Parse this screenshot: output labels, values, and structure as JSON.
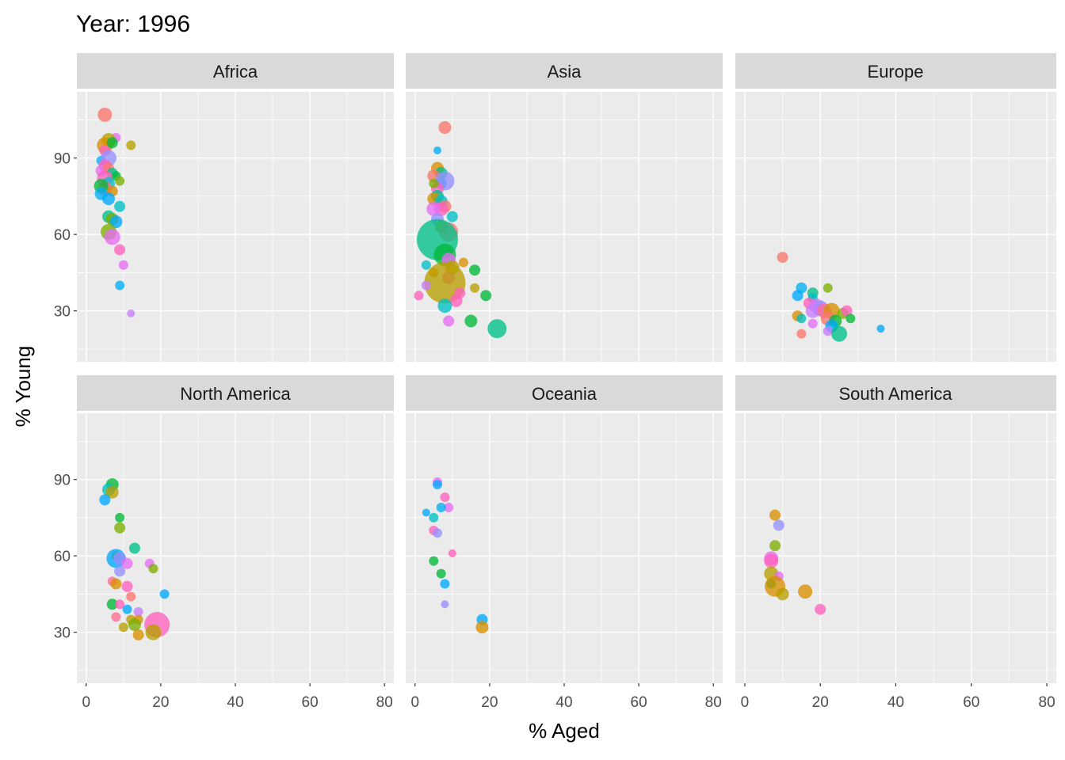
{
  "chart_data": {
    "type": "scatter",
    "title": "Year: 1996",
    "xlabel": "% Aged",
    "ylabel": "% Young",
    "xlim": [
      -2.5,
      82.5
    ],
    "ylim": [
      10,
      116
    ],
    "x_ticks": [
      0,
      20,
      40,
      60,
      80
    ],
    "y_ticks": [
      30,
      60,
      90
    ],
    "grid": true,
    "legend": "none",
    "facets": [
      {
        "name": "Africa",
        "points": [
          [
            5,
            107,
            "#F8766D",
            9
          ],
          [
            8,
            98,
            "#E76BF3",
            6
          ],
          [
            12,
            95,
            "#B79F00",
            6
          ],
          [
            6,
            97,
            "#B79F00",
            9
          ],
          [
            5,
            95,
            "#D89000",
            10
          ],
          [
            5,
            93,
            "#FF62BC",
            7
          ],
          [
            7,
            96,
            "#00BA38",
            7
          ],
          [
            4,
            89,
            "#00B0F6",
            6
          ],
          [
            6,
            90,
            "#9590FF",
            10
          ],
          [
            5,
            87,
            "#FF62BC",
            8
          ],
          [
            4,
            85,
            "#E76BF3",
            7
          ],
          [
            6,
            86,
            "#F8766D",
            7
          ],
          [
            7,
            84,
            "#00C08B",
            7
          ],
          [
            8,
            83,
            "#00BA38",
            6
          ],
          [
            9,
            81,
            "#7CAE00",
            6
          ],
          [
            5,
            82,
            "#FF62BC",
            10
          ],
          [
            6,
            80,
            "#00BFC4",
            8
          ],
          [
            5,
            78,
            "#FF6C91",
            9
          ],
          [
            4,
            79,
            "#00BA38",
            9
          ],
          [
            7,
            77,
            "#D89000",
            7
          ],
          [
            4,
            76,
            "#00B0F6",
            8
          ],
          [
            6,
            74,
            "#00A9FF",
            8
          ],
          [
            9,
            71,
            "#00BFC4",
            7
          ],
          [
            6,
            67,
            "#00C08B",
            8
          ],
          [
            7,
            66,
            "#7CAE00",
            8
          ],
          [
            8,
            65,
            "#00A9FF",
            8
          ],
          [
            6,
            61,
            "#7CAE00",
            10
          ],
          [
            7,
            59,
            "#E76BF3",
            10
          ],
          [
            9,
            54,
            "#FF62BC",
            7
          ],
          [
            10,
            48,
            "#E76BF3",
            6
          ],
          [
            9,
            40,
            "#00B0F6",
            6
          ],
          [
            12,
            29,
            "#C77CFF",
            5
          ]
        ]
      },
      {
        "name": "Asia",
        "points": [
          [
            8,
            102,
            "#F8766D",
            8
          ],
          [
            6,
            93,
            "#00B0F6",
            5
          ],
          [
            6,
            86,
            "#D89000",
            8
          ],
          [
            7,
            84,
            "#00C08B",
            8
          ],
          [
            5,
            83,
            "#F8766D",
            8
          ],
          [
            7,
            80,
            "#00A9FF",
            7
          ],
          [
            8,
            81,
            "#9590FF",
            12
          ],
          [
            6,
            78,
            "#FF62BC",
            8
          ],
          [
            5,
            80,
            "#7CAE00",
            6
          ],
          [
            6,
            75,
            "#00C08B",
            8
          ],
          [
            5,
            74,
            "#D89000",
            8
          ],
          [
            7,
            73,
            "#00BFC4",
            8
          ],
          [
            8,
            71,
            "#F8766D",
            8
          ],
          [
            7,
            70,
            "#FF62BC",
            9
          ],
          [
            5,
            70,
            "#E76BF3",
            9
          ],
          [
            10,
            67,
            "#00BFC4",
            7
          ],
          [
            6,
            66,
            "#9590FF",
            8
          ],
          [
            7,
            63,
            "#B79F00",
            8
          ],
          [
            9,
            61,
            "#F8766D",
            12
          ],
          [
            6,
            58,
            "#00C08B",
            26
          ],
          [
            3,
            48,
            "#00BFC4",
            6
          ],
          [
            8,
            52,
            "#00BA38",
            14
          ],
          [
            9,
            50,
            "#E76BF3",
            9
          ],
          [
            13,
            49,
            "#D89000",
            6
          ],
          [
            10,
            47,
            "#B79F00",
            9
          ],
          [
            16,
            46,
            "#00BA38",
            7
          ],
          [
            5,
            45,
            "#D89000",
            6
          ],
          [
            9,
            43,
            "#FF62BC",
            8
          ],
          [
            8,
            41,
            "#B79F00",
            26
          ],
          [
            3,
            40,
            "#C77CFF",
            6
          ],
          [
            16,
            39,
            "#B79F00",
            6
          ],
          [
            12,
            37,
            "#FF62BC",
            7
          ],
          [
            19,
            36,
            "#00BA38",
            7
          ],
          [
            1,
            36,
            "#FF62BC",
            6
          ],
          [
            11,
            34,
            "#FF62BC",
            8
          ],
          [
            8,
            32,
            "#00BFC4",
            9
          ],
          [
            9,
            26,
            "#E76BF3",
            7
          ],
          [
            15,
            26,
            "#00BA38",
            8
          ],
          [
            22,
            23,
            "#00C08B",
            12
          ]
        ]
      },
      {
        "name": "Europe",
        "points": [
          [
            10,
            51,
            "#F8766D",
            7
          ],
          [
            22,
            39,
            "#7CAE00",
            6
          ],
          [
            15,
            39,
            "#00B0F6",
            7
          ],
          [
            18,
            37,
            "#00C08B",
            7
          ],
          [
            14,
            36,
            "#00A9FF",
            7
          ],
          [
            18,
            35,
            "#00BFC4",
            6
          ],
          [
            17,
            33,
            "#FF62BC",
            7
          ],
          [
            19,
            32,
            "#E76BF3",
            9
          ],
          [
            20,
            31,
            "#9590FF",
            10
          ],
          [
            18,
            30,
            "#C77CFF",
            9
          ],
          [
            21,
            30,
            "#FF6C91",
            9
          ],
          [
            23,
            30,
            "#D89000",
            10
          ],
          [
            26,
            29,
            "#7CAE00",
            7
          ],
          [
            27,
            30,
            "#FF62BC",
            7
          ],
          [
            14,
            28,
            "#D89000",
            7
          ],
          [
            15,
            27,
            "#00BFC4",
            6
          ],
          [
            22,
            27,
            "#F8766D",
            9
          ],
          [
            24,
            26,
            "#00BA38",
            8
          ],
          [
            28,
            27,
            "#00BA38",
            6
          ],
          [
            18,
            25,
            "#E76BF3",
            6
          ],
          [
            23,
            24,
            "#00A9FF",
            8
          ],
          [
            36,
            23,
            "#00A9FF",
            5
          ],
          [
            22,
            22,
            "#C77CFF",
            6
          ],
          [
            15,
            21,
            "#F8766D",
            6
          ],
          [
            25,
            21,
            "#00C08B",
            10
          ]
        ]
      },
      {
        "name": "North America",
        "points": [
          [
            7,
            88,
            "#00BA38",
            8
          ],
          [
            6,
            86,
            "#00BFC4",
            8
          ],
          [
            7,
            85,
            "#B79F00",
            8
          ],
          [
            5,
            82,
            "#00A9FF",
            7
          ],
          [
            9,
            75,
            "#00BA38",
            6
          ],
          [
            9,
            71,
            "#7CAE00",
            7
          ],
          [
            13,
            63,
            "#00C08B",
            7
          ],
          [
            8,
            60,
            "#D89000",
            6
          ],
          [
            8,
            59,
            "#00A9FF",
            12
          ],
          [
            9,
            59,
            "#9590FF",
            8
          ],
          [
            11,
            57,
            "#E76BF3",
            7
          ],
          [
            17,
            57,
            "#E76BF3",
            6
          ],
          [
            18,
            55,
            "#7CAE00",
            6
          ],
          [
            9,
            54,
            "#9590FF",
            7
          ],
          [
            7,
            50,
            "#FF6C91",
            6
          ],
          [
            8,
            49,
            "#D89000",
            7
          ],
          [
            11,
            48,
            "#FF62BC",
            7
          ],
          [
            21,
            45,
            "#00A9FF",
            6
          ],
          [
            12,
            44,
            "#F8766D",
            6
          ],
          [
            7,
            41,
            "#00BA38",
            7
          ],
          [
            9,
            41,
            "#FF62BC",
            6
          ],
          [
            11,
            39,
            "#00A9FF",
            6
          ],
          [
            14,
            38,
            "#C77CFF",
            6
          ],
          [
            8,
            36,
            "#FF6C91",
            6
          ],
          [
            12,
            35,
            "#B79F00",
            6
          ],
          [
            14,
            35,
            "#D89000",
            6
          ],
          [
            13,
            33,
            "#7CAE00",
            8
          ],
          [
            19,
            33,
            "#FF62BC",
            16
          ],
          [
            10,
            32,
            "#B79F00",
            6
          ],
          [
            18,
            30,
            "#B79F00",
            10
          ],
          [
            14,
            29,
            "#D89000",
            7
          ]
        ]
      },
      {
        "name": "Oceania",
        "points": [
          [
            6,
            89,
            "#E76BF3",
            6
          ],
          [
            6,
            88,
            "#00A9FF",
            6
          ],
          [
            8,
            83,
            "#FF62BC",
            6
          ],
          [
            9,
            79,
            "#E76BF3",
            6
          ],
          [
            7,
            79,
            "#00B0F6",
            6
          ],
          [
            3,
            77,
            "#00A9FF",
            5
          ],
          [
            5,
            75,
            "#00BFC4",
            6
          ],
          [
            5,
            70,
            "#FF62BC",
            6
          ],
          [
            6,
            69,
            "#9590FF",
            6
          ],
          [
            10,
            61,
            "#FF62BC",
            5
          ],
          [
            5,
            58,
            "#00BA38",
            6
          ],
          [
            7,
            53,
            "#00BA38",
            6
          ],
          [
            8,
            49,
            "#00A9FF",
            6
          ],
          [
            8,
            41,
            "#9590FF",
            5
          ],
          [
            18,
            35,
            "#00A9FF",
            7
          ],
          [
            18,
            32,
            "#D89000",
            8
          ]
        ]
      },
      {
        "name": "South America",
        "points": [
          [
            8,
            76,
            "#D89000",
            7
          ],
          [
            9,
            72,
            "#9590FF",
            7
          ],
          [
            8,
            64,
            "#7CAE00",
            7
          ],
          [
            7,
            59,
            "#E76BF3",
            9
          ],
          [
            7,
            58,
            "#FF62BC",
            9
          ],
          [
            7,
            53,
            "#B79F00",
            9
          ],
          [
            9,
            52,
            "#E76BF3",
            6
          ],
          [
            7,
            49,
            "#00BA38",
            6
          ],
          [
            8,
            48,
            "#D89000",
            13
          ],
          [
            10,
            45,
            "#B79F00",
            8
          ],
          [
            16,
            46,
            "#D89000",
            9
          ],
          [
            20,
            39,
            "#FF62BC",
            7
          ]
        ]
      }
    ]
  }
}
